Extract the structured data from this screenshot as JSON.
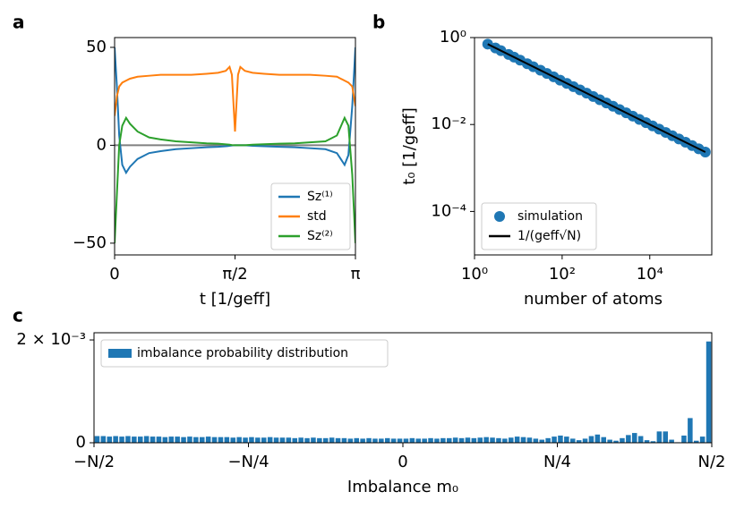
{
  "chart_data": [
    {
      "type": "line",
      "panel_label": "a",
      "xlabel": "t [1/geff]",
      "legend": "lower right",
      "xlim": [
        0,
        3.14159
      ],
      "ylim": [
        -56,
        55
      ],
      "xticks": [
        0,
        {
          "value": 1.5708,
          "label": "π/2"
        },
        {
          "value": 3.14159,
          "label": "π"
        }
      ],
      "yticks": [
        {
          "value": -50,
          "label": "−50"
        },
        0,
        50
      ],
      "hline": {
        "y": 0,
        "color": "#808080"
      },
      "x": [
        0,
        0.03,
        0.06,
        0.1,
        0.15,
        0.2,
        0.3,
        0.45,
        0.6,
        0.8,
        1.0,
        1.2,
        1.35,
        1.45,
        1.5,
        1.53,
        1.5708,
        1.61,
        1.64,
        1.7,
        1.8,
        1.95,
        2.15,
        2.35,
        2.55,
        2.75,
        2.9,
        3.0,
        3.05,
        3.1,
        3.14159
      ],
      "series": [
        {
          "name": "Sz⁽¹⁾",
          "color": "#1f77b4",
          "values": [
            50,
            30,
            5,
            -10,
            -14,
            -11,
            -7,
            -4,
            -3,
            -2,
            -1.5,
            -1,
            -0.8,
            -0.5,
            -0.3,
            -0.1,
            0,
            0,
            0,
            0,
            -0.3,
            -0.5,
            -0.8,
            -1,
            -1.5,
            -2,
            -4,
            -10,
            -5,
            20,
            50
          ]
        },
        {
          "name": "std",
          "color": "#ff7f0e",
          "values": [
            15,
            25,
            30,
            32,
            33,
            34,
            35,
            35.5,
            36,
            36,
            36,
            36.5,
            37,
            38,
            40,
            36,
            7,
            36,
            40,
            38,
            37,
            36.5,
            36,
            36,
            36,
            35.5,
            35,
            33,
            32,
            30,
            20
          ]
        },
        {
          "name": "Sz⁽²⁾",
          "color": "#2ca02c",
          "values": [
            -50,
            -25,
            0,
            10,
            14,
            11,
            7,
            4,
            3,
            2,
            1.5,
            1,
            0.8,
            0.5,
            0.3,
            0.1,
            0,
            0,
            0,
            0,
            0.3,
            0.5,
            0.8,
            1,
            1.5,
            2,
            5,
            14,
            10,
            -15,
            -50
          ]
        }
      ]
    },
    {
      "type": "scatter",
      "panel_label": "b",
      "xlabel": "number of atoms",
      "ylabel": "t₀ [1/geff]",
      "legend": "lower left",
      "xscale": "log",
      "yscale": "log",
      "xlim": [
        1,
        260000
      ],
      "ylim": [
        1e-05,
        1
      ],
      "xticks": [
        {
          "value": 1,
          "label": "10⁰"
        },
        {
          "value": 100,
          "label": "10²"
        },
        {
          "value": 10000,
          "label": "10⁴"
        }
      ],
      "yticks": [
        {
          "value": 0.0001,
          "label": "10⁻⁴"
        },
        {
          "value": 0.01,
          "label": "10⁻²"
        },
        {
          "value": 1,
          "label": "10⁰"
        }
      ],
      "series": [
        {
          "name": "simulation",
          "type": "scatter",
          "color": "#1f77b4",
          "x": [
            2,
            3,
            4,
            6,
            8,
            11,
            16,
            22,
            32,
            45,
            64,
            90,
            128,
            181,
            256,
            362,
            512,
            724,
            1024,
            1448,
            2048,
            2896,
            4096,
            5793,
            8192,
            11585,
            16384,
            23170,
            32768,
            46341,
            65536,
            92682,
            131072,
            185364
          ],
          "values": [
            0.707,
            0.577,
            0.5,
            0.408,
            0.354,
            0.302,
            0.25,
            0.213,
            0.177,
            0.149,
            0.125,
            0.105,
            0.0884,
            0.0743,
            0.0625,
            0.0526,
            0.0442,
            0.0372,
            0.03125,
            0.0263,
            0.0221,
            0.0186,
            0.0156,
            0.0131,
            0.01105,
            0.00929,
            0.00781,
            0.00657,
            0.00552,
            0.00465,
            0.00391,
            0.00328,
            0.00276,
            0.00232
          ]
        },
        {
          "name": "1/(geff√N)",
          "type": "line",
          "color": "#000000",
          "x": [
            2,
            185364
          ],
          "values": [
            0.707,
            0.00232
          ]
        }
      ]
    },
    {
      "type": "bar",
      "panel_label": "c",
      "xlabel": "Imbalance m₀",
      "legend": "upper left",
      "xlim": [
        -0.5,
        0.5
      ],
      "ylim": [
        0,
        0.00214
      ],
      "xticks": [
        {
          "value": -0.5,
          "label": "−N/2"
        },
        {
          "value": -0.25,
          "label": "−N/4"
        },
        0,
        {
          "value": 0.25,
          "label": "N/4"
        },
        {
          "value": 0.5,
          "label": "N/2"
        }
      ],
      "yticks": [
        0,
        {
          "value": 0.002,
          "label": "2 × 10⁻³"
        }
      ],
      "x": [
        -0.495,
        -0.485,
        -0.475,
        -0.465,
        -0.455,
        -0.445,
        -0.435,
        -0.425,
        -0.415,
        -0.405,
        -0.395,
        -0.385,
        -0.375,
        -0.365,
        -0.355,
        -0.345,
        -0.335,
        -0.325,
        -0.315,
        -0.305,
        -0.295,
        -0.285,
        -0.275,
        -0.265,
        -0.255,
        -0.245,
        -0.235,
        -0.225,
        -0.215,
        -0.205,
        -0.195,
        -0.185,
        -0.175,
        -0.165,
        -0.155,
        -0.145,
        -0.135,
        -0.125,
        -0.115,
        -0.105,
        -0.095,
        -0.085,
        -0.075,
        -0.065,
        -0.055,
        -0.045,
        -0.035,
        -0.025,
        -0.015,
        -0.005,
        0.005,
        0.015,
        0.025,
        0.035,
        0.045,
        0.055,
        0.065,
        0.075,
        0.085,
        0.095,
        0.105,
        0.115,
        0.125,
        0.135,
        0.145,
        0.155,
        0.165,
        0.175,
        0.185,
        0.195,
        0.205,
        0.215,
        0.225,
        0.235,
        0.245,
        0.255,
        0.265,
        0.275,
        0.285,
        0.295,
        0.305,
        0.315,
        0.325,
        0.335,
        0.345,
        0.355,
        0.365,
        0.375,
        0.385,
        0.395,
        0.405,
        0.415,
        0.425,
        0.435,
        0.445,
        0.455,
        0.465,
        0.475,
        0.485,
        0.495
      ],
      "series": [
        {
          "name": "imbalance probability distribution",
          "color": "#1f77b4",
          "values": [
            0.00013,
            0.00013,
            0.00012,
            0.00013,
            0.00012,
            0.00013,
            0.00012,
            0.00012,
            0.00013,
            0.00012,
            0.00012,
            0.00011,
            0.00012,
            0.00012,
            0.00011,
            0.00012,
            0.00011,
            0.00011,
            0.00012,
            0.00011,
            0.00011,
            0.00011,
            0.0001,
            0.00011,
            0.0001,
            0.00011,
            0.0001,
            0.0001,
            0.00011,
            0.0001,
            0.0001,
            0.0001,
            9e-05,
            0.0001,
            9e-05,
            0.0001,
            9e-05,
            9e-05,
            0.0001,
            9e-05,
            9e-05,
            8e-05,
            9e-05,
            8e-05,
            9e-05,
            8e-05,
            8e-05,
            9e-05,
            8e-05,
            8e-05,
            8e-05,
            9e-05,
            8e-05,
            8e-05,
            9e-05,
            8e-05,
            9e-05,
            9e-05,
            0.0001,
            9e-05,
            0.0001,
            9e-05,
            0.0001,
            0.00011,
            0.0001,
            9e-05,
            8e-05,
            0.0001,
            0.00012,
            0.00011,
            0.0001,
            8e-05,
            6e-05,
            9e-05,
            0.00012,
            0.00014,
            0.00012,
            8e-05,
            5e-05,
            8e-05,
            0.00013,
            0.00016,
            0.00011,
            6e-05,
            4e-05,
            9e-05,
            0.00015,
            0.00019,
            0.00013,
            5e-05,
            3e-05,
            0.00022,
            0.00022,
            6e-05,
            1e-05,
            0.00014,
            0.00048,
            4e-05,
            0.00012,
            0.00197
          ]
        }
      ]
    }
  ]
}
